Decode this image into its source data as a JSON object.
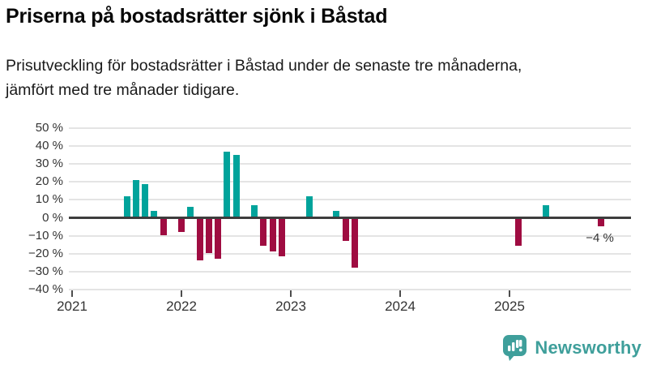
{
  "header": {
    "title": "Priserna på bostadsrätter sjönk i Båstad",
    "subtitle_line1": "Prisutveckling för bostadsrätter i Båstad under de senaste tre månaderna,",
    "subtitle_line2": "jämfört med tre månader tidigare."
  },
  "chart_data": {
    "type": "bar",
    "title": "Priserna på bostadsrätter sjönk i Båstad",
    "xlabel": "",
    "ylabel": "",
    "unit": "%",
    "ylim": [
      -40,
      50
    ],
    "ytick_step": 10,
    "grid": "horizontal",
    "yticks": [
      {
        "value": 50,
        "label": "50 %"
      },
      {
        "value": 40,
        "label": "40 %"
      },
      {
        "value": 30,
        "label": "30 %"
      },
      {
        "value": 20,
        "label": "20 %"
      },
      {
        "value": 10,
        "label": "10 %"
      },
      {
        "value": 0,
        "label": "0 %"
      },
      {
        "value": -10,
        "label": "−10 %"
      },
      {
        "value": -20,
        "label": "−20 %"
      },
      {
        "value": -30,
        "label": "−30 %"
      },
      {
        "value": -40,
        "label": "−40 %"
      }
    ],
    "xticks": [
      {
        "value": 2021,
        "label": "2021"
      },
      {
        "value": 2022,
        "label": "2022"
      },
      {
        "value": 2023,
        "label": "2023"
      },
      {
        "value": 2024,
        "label": "2024"
      },
      {
        "value": 2025,
        "label": "2025"
      }
    ],
    "bars": [
      {
        "year": 2021,
        "month": 7,
        "value": 12
      },
      {
        "year": 2021,
        "month": 8,
        "value": 21
      },
      {
        "year": 2021,
        "month": 9,
        "value": 19
      },
      {
        "year": 2021,
        "month": 10,
        "value": 4
      },
      {
        "year": 2021,
        "month": 11,
        "value": -9
      },
      {
        "year": 2022,
        "month": 1,
        "value": -7
      },
      {
        "year": 2022,
        "month": 2,
        "value": 6
      },
      {
        "year": 2022,
        "month": 3,
        "value": -23
      },
      {
        "year": 2022,
        "month": 4,
        "value": -19
      },
      {
        "year": 2022,
        "month": 5,
        "value": -22
      },
      {
        "year": 2022,
        "month": 6,
        "value": 37
      },
      {
        "year": 2022,
        "month": 7,
        "value": 35
      },
      {
        "year": 2022,
        "month": 9,
        "value": 7
      },
      {
        "year": 2022,
        "month": 10,
        "value": -15
      },
      {
        "year": 2022,
        "month": 11,
        "value": -18
      },
      {
        "year": 2022,
        "month": 12,
        "value": -21
      },
      {
        "year": 2023,
        "month": 3,
        "value": 12
      },
      {
        "year": 2023,
        "month": 6,
        "value": 4
      },
      {
        "year": 2023,
        "month": 7,
        "value": -12
      },
      {
        "year": 2023,
        "month": 8,
        "value": -27
      },
      {
        "year": 2025,
        "month": 2,
        "value": -15
      },
      {
        "year": 2025,
        "month": 5,
        "value": 7
      },
      {
        "year": 2025,
        "month": 11,
        "value": -4
      }
    ],
    "annotation": {
      "text": "−4 %",
      "target": "last-bar"
    },
    "colors": {
      "positive": "#00a39b",
      "negative": "#9f0c41",
      "zero_line": "#3d3d3d",
      "gridline": "#e4e4e4",
      "tick": "#4d4d4d",
      "label_text": "#333333"
    }
  },
  "footer": {
    "brand": "Newsworthy",
    "brand_color": "#3f9f9b",
    "logo_icon": "speech-bubble-bar-chart"
  }
}
